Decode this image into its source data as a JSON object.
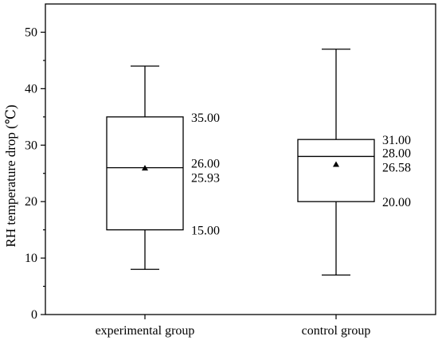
{
  "chart_data": {
    "type": "box",
    "ylabel": "RH temperature drop (℃)",
    "ylim": [
      0,
      55
    ],
    "yticks": [
      0,
      10,
      20,
      30,
      40,
      50
    ],
    "ytick_labels": [
      "0",
      "10",
      "20",
      "30",
      "40",
      "50"
    ],
    "categories": [
      "experimental group",
      "control group"
    ],
    "boxes": [
      {
        "category": "experimental group",
        "min": 8,
        "q1": 15,
        "median": 26,
        "q3": 35,
        "max": 44,
        "mean": 25.93,
        "labels": {
          "q3": "35.00",
          "median": "26.00",
          "mean": "25.93",
          "q1": "15.00"
        }
      },
      {
        "category": "control group",
        "min": 7,
        "q1": 20,
        "median": 28,
        "q3": 31,
        "max": 47,
        "mean": 26.58,
        "labels": {
          "q3": "31.00",
          "median": "28.00",
          "mean": "26.58",
          "q1": "20.00"
        }
      }
    ],
    "grid": false,
    "legend": "none"
  }
}
